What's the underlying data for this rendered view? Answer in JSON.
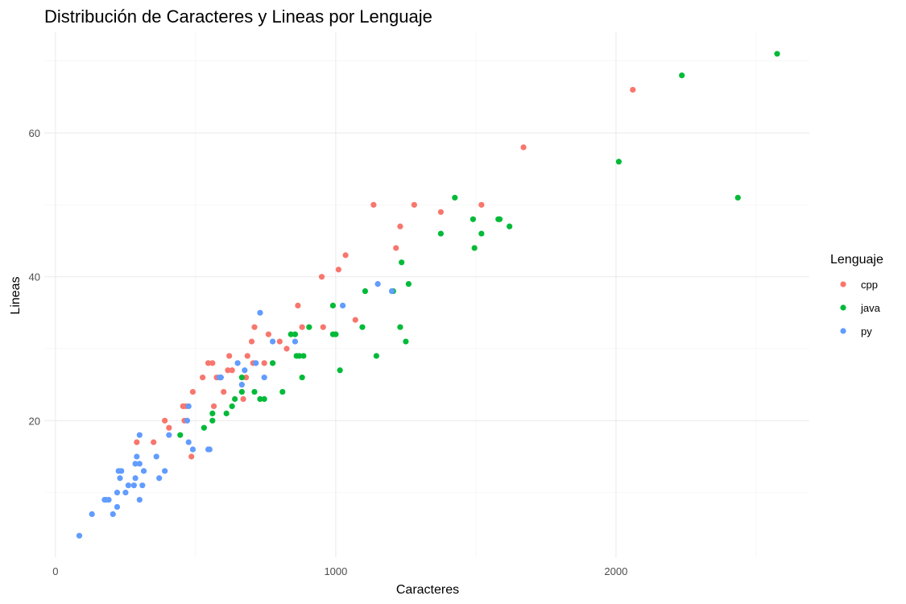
{
  "chart_data": {
    "type": "scatter",
    "title": "Distribución de Caracteres y Lineas por Lenguaje",
    "xlabel": "Caracteres",
    "ylabel": "Lineas",
    "xlim": [
      -40,
      2690
    ],
    "ylim": [
      1,
      74
    ],
    "x_ticks": [
      0,
      1000,
      2000
    ],
    "y_ticks": [
      20,
      40,
      60
    ],
    "x_minor_ticks": [
      500,
      1500,
      2500
    ],
    "y_minor_ticks": [
      10,
      30,
      50,
      70
    ],
    "grid": true,
    "legend": {
      "title": "Lenguaje",
      "position": "right"
    },
    "series": [
      {
        "name": "cpp",
        "color": "#F8766D",
        "points": [
          [
            290,
            17
          ],
          [
            350,
            17
          ],
          [
            390,
            20
          ],
          [
            405,
            19
          ],
          [
            455,
            22
          ],
          [
            465,
            22
          ],
          [
            460,
            20
          ],
          [
            485,
            15
          ],
          [
            490,
            24
          ],
          [
            525,
            26
          ],
          [
            545,
            28
          ],
          [
            560,
            28
          ],
          [
            565,
            22
          ],
          [
            575,
            26
          ],
          [
            590,
            26
          ],
          [
            600,
            24
          ],
          [
            620,
            29
          ],
          [
            615,
            27
          ],
          [
            630,
            27
          ],
          [
            670,
            23
          ],
          [
            680,
            26
          ],
          [
            685,
            29
          ],
          [
            700,
            31
          ],
          [
            705,
            28
          ],
          [
            710,
            33
          ],
          [
            745,
            28
          ],
          [
            760,
            32
          ],
          [
            800,
            31
          ],
          [
            825,
            30
          ],
          [
            865,
            36
          ],
          [
            880,
            33
          ],
          [
            950,
            40
          ],
          [
            955,
            33
          ],
          [
            1010,
            41
          ],
          [
            1035,
            43
          ],
          [
            1070,
            34
          ],
          [
            1135,
            50
          ],
          [
            1215,
            44
          ],
          [
            1230,
            47
          ],
          [
            1280,
            50
          ],
          [
            1375,
            49
          ],
          [
            1520,
            50
          ],
          [
            1670,
            58
          ],
          [
            2060,
            66
          ]
        ]
      },
      {
        "name": "java",
        "color": "#00BA38",
        "points": [
          [
            445,
            18
          ],
          [
            530,
            19
          ],
          [
            560,
            20
          ],
          [
            560,
            21
          ],
          [
            610,
            21
          ],
          [
            630,
            22
          ],
          [
            640,
            23
          ],
          [
            665,
            24
          ],
          [
            665,
            26
          ],
          [
            710,
            24
          ],
          [
            730,
            23
          ],
          [
            745,
            23
          ],
          [
            775,
            28
          ],
          [
            810,
            24
          ],
          [
            840,
            32
          ],
          [
            855,
            32
          ],
          [
            860,
            29
          ],
          [
            870,
            29
          ],
          [
            880,
            26
          ],
          [
            885,
            29
          ],
          [
            905,
            33
          ],
          [
            990,
            36
          ],
          [
            990,
            32
          ],
          [
            1000,
            32
          ],
          [
            1015,
            27
          ],
          [
            1095,
            33
          ],
          [
            1105,
            38
          ],
          [
            1145,
            29
          ],
          [
            1205,
            38
          ],
          [
            1230,
            33
          ],
          [
            1235,
            42
          ],
          [
            1250,
            31
          ],
          [
            1260,
            39
          ],
          [
            1375,
            46
          ],
          [
            1425,
            51
          ],
          [
            1490,
            48
          ],
          [
            1495,
            44
          ],
          [
            1520,
            46
          ],
          [
            1580,
            48
          ],
          [
            1585,
            48
          ],
          [
            1620,
            47
          ],
          [
            2010,
            56
          ],
          [
            2235,
            68
          ],
          [
            2435,
            51
          ],
          [
            2575,
            71
          ]
        ]
      },
      {
        "name": "py",
        "color": "#619CFF",
        "points": [
          [
            85,
            4
          ],
          [
            130,
            7
          ],
          [
            175,
            9
          ],
          [
            180,
            9
          ],
          [
            190,
            9
          ],
          [
            205,
            7
          ],
          [
            220,
            8
          ],
          [
            220,
            10
          ],
          [
            225,
            13
          ],
          [
            230,
            12
          ],
          [
            235,
            13
          ],
          [
            250,
            10
          ],
          [
            260,
            11
          ],
          [
            280,
            11
          ],
          [
            285,
            14
          ],
          [
            285,
            12
          ],
          [
            290,
            15
          ],
          [
            300,
            18
          ],
          [
            300,
            14
          ],
          [
            300,
            9
          ],
          [
            310,
            11
          ],
          [
            315,
            13
          ],
          [
            360,
            15
          ],
          [
            370,
            12
          ],
          [
            390,
            13
          ],
          [
            405,
            18
          ],
          [
            470,
            20
          ],
          [
            475,
            17
          ],
          [
            475,
            22
          ],
          [
            490,
            16
          ],
          [
            545,
            16
          ],
          [
            550,
            16
          ],
          [
            585,
            26
          ],
          [
            590,
            26
          ],
          [
            650,
            28
          ],
          [
            665,
            25
          ],
          [
            675,
            27
          ],
          [
            715,
            28
          ],
          [
            730,
            35
          ],
          [
            745,
            26
          ],
          [
            775,
            31
          ],
          [
            855,
            31
          ],
          [
            1025,
            36
          ],
          [
            1150,
            39
          ],
          [
            1200,
            38
          ]
        ]
      }
    ]
  }
}
